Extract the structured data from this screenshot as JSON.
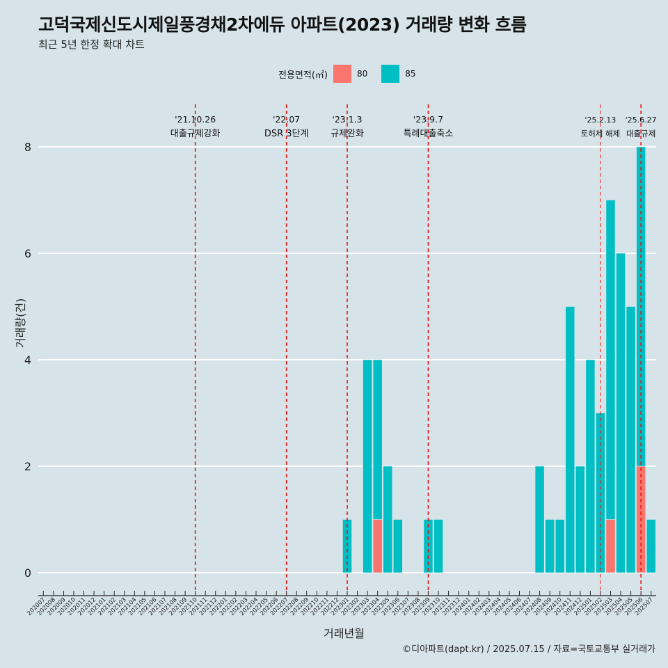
{
  "title": "고덕국제신도시제일풍경채2차에듀 아파트(2023) 거래량 변화 흐름",
  "subtitle": "최근 5년 한정 확대 차트",
  "caption": "©디아파트(dapt.kr) / 2025.07.15 / 자료=국토교통부 실거래가",
  "colors": {
    "background": "#d6e4ea",
    "s80": "#f8766d",
    "s85": "#00bfc4",
    "event_line": "#ee1111"
  },
  "chart_data": {
    "type": "bar",
    "stacked": true,
    "xlabel": "거래년월",
    "ylabel": "거래량(건)",
    "ylim": [
      0,
      8.4
    ],
    "yticks": [
      0,
      2,
      4,
      6,
      8
    ],
    "legend": {
      "title": "전용면적(㎡)",
      "position": "top"
    },
    "categories": [
      "202007",
      "202008",
      "202009",
      "202010",
      "202011",
      "202012",
      "202101",
      "202102",
      "202103",
      "202104",
      "202105",
      "202106",
      "202107",
      "202108",
      "202109",
      "202110",
      "202111",
      "202112",
      "202201",
      "202202",
      "202203",
      "202204",
      "202205",
      "202206",
      "202207",
      "202208",
      "202209",
      "202210",
      "202211",
      "202212",
      "202301",
      "202302",
      "202303",
      "202304",
      "202305",
      "202306",
      "202307",
      "202308",
      "202309",
      "202310",
      "202311",
      "202312",
      "202401",
      "202402",
      "202403",
      "202404",
      "202405",
      "202406",
      "202407",
      "202408",
      "202409",
      "202410",
      "202411",
      "202412",
      "202501",
      "202502",
      "202503",
      "202504",
      "202505",
      "202506",
      "202507"
    ],
    "series": [
      {
        "name": "80",
        "values": [
          0,
          0,
          0,
          0,
          0,
          0,
          0,
          0,
          0,
          0,
          0,
          0,
          0,
          0,
          0,
          0,
          0,
          0,
          0,
          0,
          0,
          0,
          0,
          0,
          0,
          0,
          0,
          0,
          0,
          0,
          0,
          0,
          0,
          1,
          0,
          0,
          0,
          0,
          0,
          0,
          0,
          0,
          0,
          0,
          0,
          0,
          0,
          0,
          0,
          0,
          0,
          0,
          0,
          0,
          0,
          0,
          1,
          0,
          0,
          2,
          0
        ]
      },
      {
        "name": "85",
        "values": [
          0,
          0,
          0,
          0,
          0,
          0,
          0,
          0,
          0,
          0,
          0,
          0,
          0,
          0,
          0,
          0,
          0,
          0,
          0,
          0,
          0,
          0,
          0,
          0,
          0,
          0,
          0,
          0,
          0,
          0,
          1,
          0,
          4,
          3,
          2,
          1,
          0,
          0,
          1,
          1,
          0,
          0,
          0,
          0,
          0,
          0,
          0,
          0,
          0,
          2,
          1,
          1,
          5,
          2,
          4,
          3,
          6,
          6,
          5,
          6,
          1
        ]
      }
    ],
    "events": [
      {
        "date": "'21.10.26",
        "label": "대출규제강화",
        "category": "202110"
      },
      {
        "date": "'22.07",
        "label": "DSR 3단계",
        "category": "202207"
      },
      {
        "date": "'23.1.3",
        "label": "규제완화",
        "category": "202301"
      },
      {
        "date": "'23.9.7",
        "label": "특례대출축소",
        "category": "202309"
      },
      {
        "date": "'25.2.13",
        "label": "토허제 해제",
        "category": "202502"
      },
      {
        "date": "'25.6.27",
        "label": "대출규제",
        "category": "202506"
      }
    ]
  }
}
